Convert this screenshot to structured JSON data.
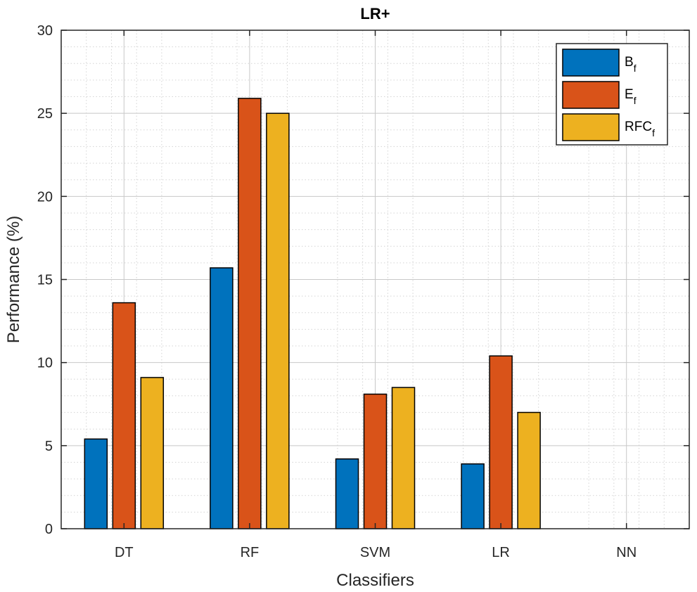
{
  "chart_data": {
    "type": "bar",
    "title": "LR+",
    "xlabel": "Classifiers",
    "ylabel": "Performance (%)",
    "categories": [
      "DT",
      "RF",
      "SVM",
      "LR",
      "NN"
    ],
    "ylim": [
      0,
      30
    ],
    "yticks": [
      0,
      5,
      10,
      15,
      20,
      25,
      30
    ],
    "grid": true,
    "minor_grid": true,
    "legend_position": "top-right",
    "series": [
      {
        "name": "B",
        "subscript": "f",
        "color": "#0072BD",
        "values": [
          5.4,
          15.7,
          4.2,
          3.9,
          0
        ]
      },
      {
        "name": "E",
        "subscript": "f",
        "color": "#D95319",
        "values": [
          13.6,
          25.9,
          8.1,
          10.4,
          0
        ]
      },
      {
        "name": "RFC",
        "subscript": "f",
        "color": "#EDB120",
        "values": [
          9.1,
          25.0,
          8.5,
          7.0,
          0
        ]
      }
    ]
  }
}
